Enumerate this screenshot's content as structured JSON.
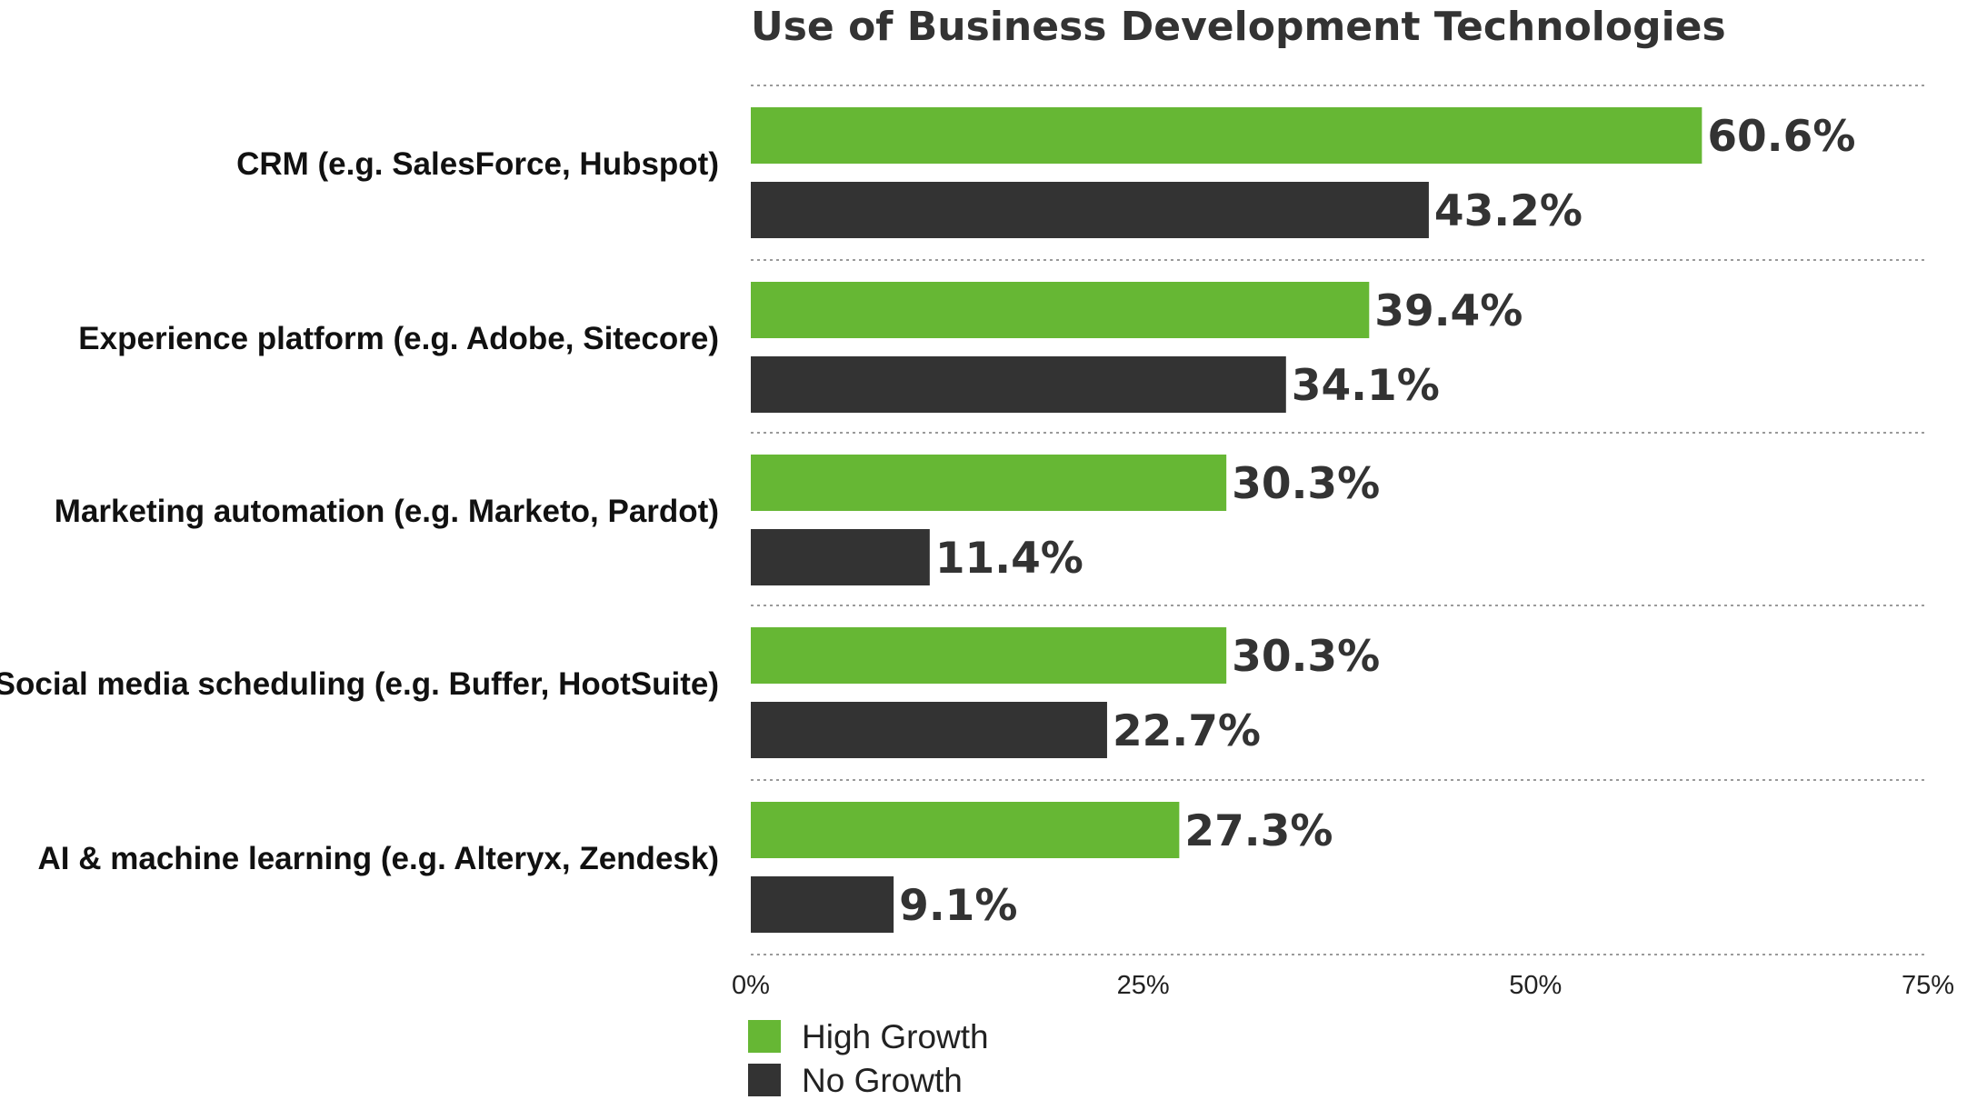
{
  "chart_data": {
    "type": "bar",
    "orientation": "horizontal",
    "title": "Use of Business Development Technologies",
    "xlabel": "",
    "ylabel": "",
    "categories": [
      "CRM (e.g. SalesForce, Hubspot)",
      "Experience platform (e.g. Adobe, Sitecore)",
      "Marketing automation (e.g. Marketo, Pardot)",
      "Social media scheduling (e.g. Buffer, HootSuite)",
      "AI & machine learning (e.g. Alteryx, Zendesk)"
    ],
    "series": [
      {
        "name": "High Growth",
        "color": "#66b734",
        "values": [
          60.6,
          39.4,
          30.3,
          30.3,
          27.3
        ],
        "labels": [
          "60.6%",
          "39.4%",
          "30.3%",
          "30.3%",
          "27.3%"
        ]
      },
      {
        "name": "No Growth",
        "color": "#333333",
        "values": [
          43.2,
          34.1,
          11.4,
          22.7,
          9.1
        ],
        "labels": [
          "43.2%",
          "34.1%",
          "11.4%",
          "22.7%",
          "9.1%"
        ]
      }
    ],
    "xlim": [
      0,
      75
    ],
    "xticks": [
      0,
      25,
      50,
      75
    ],
    "xtick_labels": [
      "0%",
      "25%",
      "50%",
      "75%"
    ],
    "grid": true,
    "legend_position": "bottom-left"
  }
}
